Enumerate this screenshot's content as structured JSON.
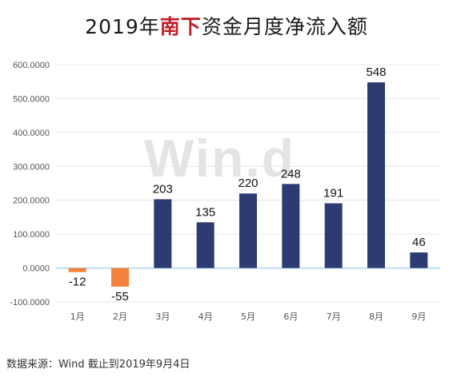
{
  "title": {
    "prefix": "2019年",
    "highlight": "南下",
    "suffix": "资金月度净流入额"
  },
  "watermark": "Win.d",
  "source": "数据来源：Wind  截止到2019年9月4日",
  "colors": {
    "positive": "#2e3b73",
    "negative": "#f5823b",
    "highlight": "#c0222a",
    "zero_line": "#a9d3ec"
  },
  "chart_data": {
    "type": "bar",
    "title": "2019年南下资金月度净流入额",
    "xlabel": "",
    "ylabel": "",
    "categories": [
      "1月",
      "2月",
      "3月",
      "4月",
      "5月",
      "6月",
      "7月",
      "8月",
      "9月"
    ],
    "values": [
      -12,
      -55,
      203,
      135,
      220,
      248,
      191,
      548,
      46
    ],
    "data_labels": [
      "-12",
      "-55",
      "203",
      "135",
      "220",
      "248",
      "191",
      "548",
      "46"
    ],
    "ylim": [
      -100,
      600
    ],
    "yticks": [
      600,
      500,
      400,
      300,
      200,
      100,
      0,
      -100
    ],
    "ytick_labels": [
      "600.0000",
      "500.0000",
      "400.0000",
      "300.0000",
      "200.0000",
      "100.0000",
      "0.0000",
      "-100.0000"
    ],
    "grid": true,
    "legend": "none"
  }
}
